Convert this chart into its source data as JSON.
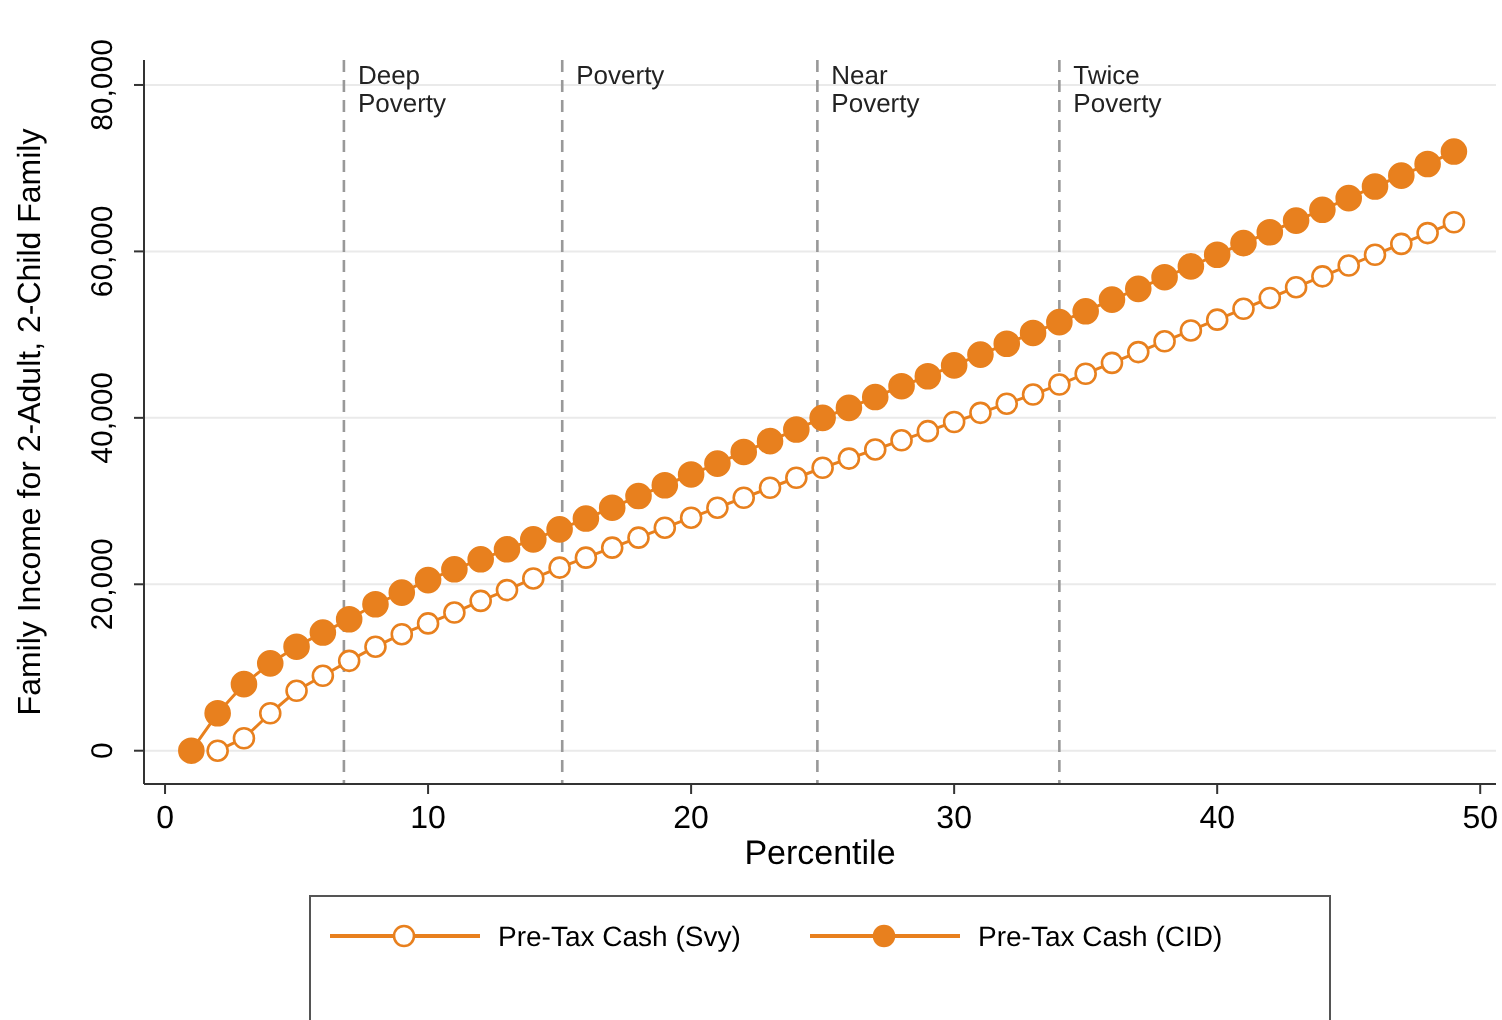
{
  "chart_data": {
    "type": "line",
    "xlabel": "Percentile",
    "ylabel": "Family Income for 2-Adult, 2-Child Family",
    "x": [
      1,
      2,
      3,
      4,
      5,
      6,
      7,
      8,
      9,
      10,
      11,
      12,
      13,
      14,
      15,
      16,
      17,
      18,
      19,
      20,
      21,
      22,
      23,
      24,
      25,
      26,
      27,
      28,
      29,
      30,
      31,
      32,
      33,
      34,
      35,
      36,
      37,
      38,
      39,
      40,
      41,
      42,
      43,
      44,
      45,
      46,
      47,
      48,
      49
    ],
    "series": [
      {
        "name": "Pre-Tax Cash (Svy)",
        "color": "#e8801e",
        "marker": "circle",
        "values": [
          null,
          0,
          1500,
          4500,
          7200,
          9000,
          10800,
          12500,
          14000,
          15300,
          16600,
          18000,
          19300,
          20700,
          22000,
          23200,
          24400,
          25600,
          26800,
          28000,
          29200,
          30400,
          31600,
          32800,
          34000,
          35100,
          36200,
          37300,
          38400,
          39500,
          40600,
          41700,
          42800,
          44000,
          45300,
          46600,
          47900,
          49200,
          50500,
          51800,
          53100,
          54400,
          55700,
          57000,
          58300,
          59600,
          60900,
          62200,
          63500
        ]
      },
      {
        "name": "Pre-Tax Cash (CID)",
        "color": "#e8801e",
        "marker": "circle",
        "values": [
          0,
          4500,
          8000,
          10500,
          12500,
          14200,
          15800,
          17600,
          19000,
          20500,
          21800,
          23000,
          24200,
          25400,
          26600,
          27900,
          29200,
          30600,
          31900,
          33200,
          34500,
          35900,
          37200,
          38600,
          40000,
          41200,
          42500,
          43800,
          45000,
          46300,
          47600,
          48900,
          50200,
          51500,
          52800,
          54200,
          55500,
          56900,
          58200,
          59600,
          61000,
          62300,
          63700,
          65000,
          66400,
          67800,
          69100,
          70500,
          72000
        ]
      }
    ],
    "xlim": [
      -0.8,
      50.6
    ],
    "ylim": [
      -4000,
      83000
    ],
    "xticks": [
      0,
      10,
      20,
      30,
      40,
      50
    ],
    "yticks": [
      {
        "value": 0,
        "label": "0"
      },
      {
        "value": 20000,
        "label": "20,000"
      },
      {
        "value": 40000,
        "label": "40,000"
      },
      {
        "value": 60000,
        "label": "60,000"
      },
      {
        "value": 80000,
        "label": "80,000"
      }
    ],
    "grid": "y",
    "legend": "bottom",
    "line_style": "solid",
    "ref_lines": [
      {
        "axis": "x",
        "value": 6.8,
        "label": "Deep\nPoverty",
        "color": "#999999",
        "line_style": "dashed"
      },
      {
        "axis": "x",
        "value": 15.1,
        "label": "Poverty",
        "color": "#999999",
        "line_style": "dashed"
      },
      {
        "axis": "x",
        "value": 24.8,
        "label": "Near\nPoverty",
        "color": "#999999",
        "line_style": "dashed"
      },
      {
        "axis": "x",
        "value": 34.0,
        "label": "Twice\nPoverty",
        "color": "#999999",
        "line_style": "dashed"
      }
    ]
  }
}
